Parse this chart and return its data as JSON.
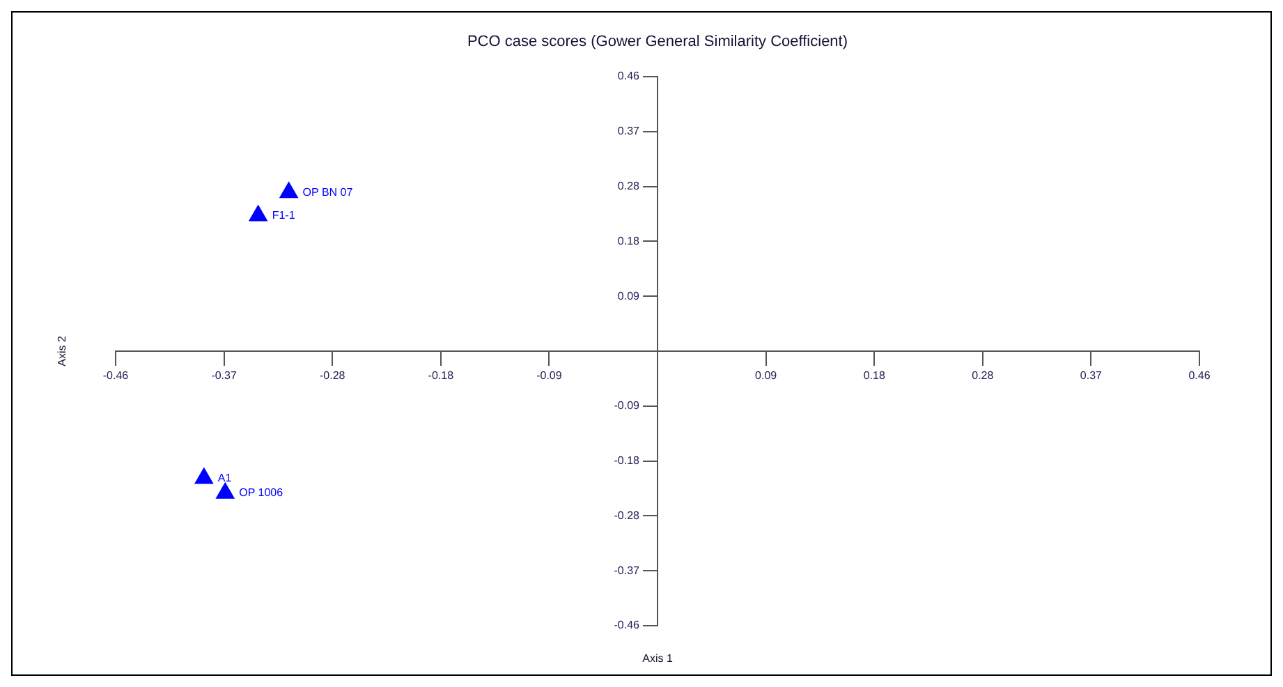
{
  "chart_data": {
    "type": "scatter",
    "title": "PCO case scores (Gower General Similarity Coefficient)",
    "xlabel": "Axis 1",
    "ylabel": "Axis 2",
    "series": [
      {
        "name": "OP BN 07",
        "color": "#0000ff",
        "x": [
          -0.313
        ],
        "values": [
          0.266
        ]
      },
      {
        "name": "F1-1",
        "color": "#0000ff",
        "x": [
          -0.339
        ],
        "values": [
          0.227
        ]
      },
      {
        "name": "A1",
        "color": "#0000ff",
        "x": [
          -0.385
        ],
        "values": [
          -0.213
        ]
      },
      {
        "name": "OP 1006",
        "color": "#0000ff",
        "x": [
          -0.367
        ],
        "values": [
          -0.238
        ]
      }
    ],
    "marker": "triangle",
    "grid": false,
    "legend": false,
    "xlim": [
      -0.46,
      0.46
    ],
    "ylim": [
      -0.46,
      0.46
    ],
    "xticks": [
      -0.46,
      {
        "value": -0.368,
        "label": "-0.37"
      },
      {
        "value": -0.276,
        "label": "-0.28"
      },
      {
        "value": -0.184,
        "label": "-0.18"
      },
      {
        "value": -0.092,
        "label": "-0.09"
      },
      {
        "value": 0.092,
        "label": "0.09"
      },
      {
        "value": 0.184,
        "label": "0.18"
      },
      {
        "value": 0.276,
        "label": "0.28"
      },
      {
        "value": 0.368,
        "label": "0.37"
      },
      0.46
    ],
    "yticks": [
      -0.46,
      {
        "value": -0.368,
        "label": "-0.37"
      },
      {
        "value": -0.276,
        "label": "-0.28"
      },
      {
        "value": -0.184,
        "label": "-0.18"
      },
      {
        "value": -0.092,
        "label": "-0.09"
      },
      {
        "value": 0.092,
        "label": "0.09"
      },
      {
        "value": 0.184,
        "label": "0.18"
      },
      {
        "value": 0.276,
        "label": "0.28"
      },
      {
        "value": 0.368,
        "label": "0.37"
      },
      0.46
    ]
  }
}
